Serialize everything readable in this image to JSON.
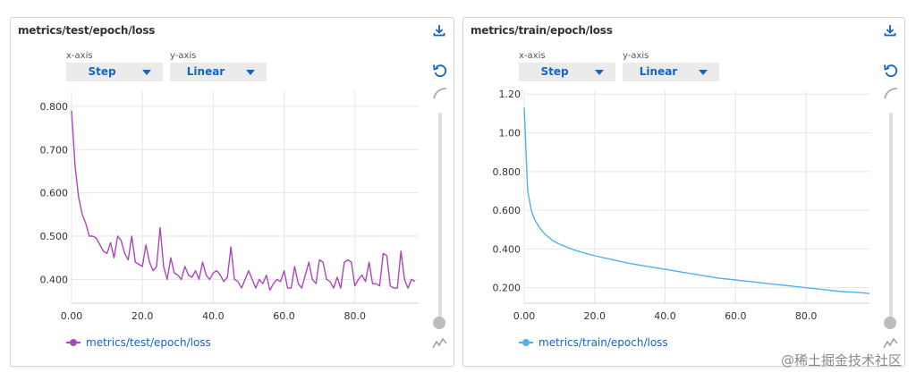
{
  "panels": [
    {
      "title": "metrics/test/epoch/loss",
      "x_axis_label": "x-axis",
      "x_axis_value": "Step",
      "y_axis_label": "y-axis",
      "y_axis_value": "Linear",
      "legend": "metrics/test/epoch/loss",
      "color": "#ab47bc"
    },
    {
      "title": "metrics/train/epoch/loss",
      "x_axis_label": "x-axis",
      "x_axis_value": "Step",
      "y_axis_label": "y-axis",
      "y_axis_value": "Linear",
      "legend": "metrics/train/epoch/loss",
      "color": "#4fb3e8"
    }
  ],
  "icons": {
    "download": "download-icon",
    "reset": "reset-zoom-icon",
    "smooth": "smoothing-icon",
    "sparkline": "sparkline-icon"
  },
  "watermark": "@稀土掘金技术社区",
  "chart_data": [
    {
      "type": "line",
      "title": "metrics/test/epoch/loss",
      "xlabel": "",
      "ylabel": "",
      "xlim": [
        0,
        98
      ],
      "ylim": [
        0.345,
        0.835
      ],
      "x_ticks": [
        0,
        20,
        40,
        60,
        80
      ],
      "x_tick_labels": [
        "0.00",
        "20.0",
        "40.0",
        "60.0",
        "80.0"
      ],
      "y_ticks": [
        0.4,
        0.5,
        0.6,
        0.7,
        0.8
      ],
      "y_tick_labels": [
        "0.400",
        "0.500",
        "0.600",
        "0.700",
        "0.800"
      ],
      "grid": true,
      "series": [
        {
          "name": "metrics/test/epoch/loss",
          "x": [
            0,
            1,
            2,
            3,
            4,
            5,
            6,
            7,
            8,
            9,
            10,
            11,
            12,
            13,
            14,
            15,
            16,
            17,
            18,
            19,
            20,
            21,
            22,
            23,
            24,
            25,
            26,
            27,
            28,
            29,
            30,
            31,
            32,
            33,
            34,
            35,
            36,
            37,
            38,
            39,
            40,
            41,
            42,
            43,
            44,
            45,
            46,
            47,
            48,
            49,
            50,
            51,
            52,
            53,
            54,
            55,
            56,
            57,
            58,
            59,
            60,
            61,
            62,
            63,
            64,
            65,
            66,
            67,
            68,
            69,
            70,
            71,
            72,
            73,
            74,
            75,
            76,
            77,
            78,
            79,
            80,
            81,
            82,
            83,
            84,
            85,
            86,
            87,
            88,
            89,
            90,
            91,
            92,
            93,
            94,
            95,
            96,
            97
          ],
          "values": [
            0.79,
            0.66,
            0.59,
            0.55,
            0.53,
            0.5,
            0.5,
            0.495,
            0.48,
            0.465,
            0.46,
            0.485,
            0.45,
            0.5,
            0.49,
            0.46,
            0.445,
            0.5,
            0.44,
            0.435,
            0.43,
            0.48,
            0.44,
            0.42,
            0.43,
            0.52,
            0.43,
            0.4,
            0.45,
            0.415,
            0.41,
            0.4,
            0.43,
            0.41,
            0.405,
            0.42,
            0.4,
            0.44,
            0.41,
            0.4,
            0.415,
            0.42,
            0.41,
            0.395,
            0.405,
            0.475,
            0.4,
            0.395,
            0.38,
            0.4,
            0.42,
            0.4,
            0.38,
            0.4,
            0.39,
            0.41,
            0.375,
            0.39,
            0.4,
            0.395,
            0.42,
            0.38,
            0.38,
            0.43,
            0.39,
            0.38,
            0.41,
            0.44,
            0.4,
            0.39,
            0.445,
            0.44,
            0.4,
            0.395,
            0.38,
            0.405,
            0.38,
            0.44,
            0.445,
            0.44,
            0.385,
            0.4,
            0.41,
            0.395,
            0.44,
            0.39,
            0.39,
            0.385,
            0.46,
            0.455,
            0.385,
            0.38,
            0.38,
            0.465,
            0.4,
            0.38,
            0.4,
            0.395
          ]
        }
      ]
    },
    {
      "type": "line",
      "title": "metrics/train/epoch/loss",
      "xlabel": "",
      "ylabel": "",
      "xlim": [
        0,
        98
      ],
      "ylim": [
        0.12,
        1.215
      ],
      "x_ticks": [
        0,
        20,
        40,
        60,
        80
      ],
      "x_tick_labels": [
        "0.00",
        "20.0",
        "40.0",
        "60.0",
        "80.0"
      ],
      "y_ticks": [
        0.2,
        0.4,
        0.6,
        0.8,
        1.0,
        1.2
      ],
      "y_tick_labels": [
        "0.200",
        "0.400",
        "0.600",
        "0.800",
        "1.00",
        "1.20"
      ],
      "grid": true,
      "series": [
        {
          "name": "metrics/train/epoch/loss",
          "x": [
            0,
            1,
            2,
            3,
            4,
            5,
            6,
            8,
            10,
            12,
            15,
            18,
            20,
            25,
            30,
            35,
            40,
            45,
            50,
            55,
            60,
            65,
            70,
            75,
            80,
            85,
            90,
            95,
            98
          ],
          "values": [
            1.13,
            0.7,
            0.6,
            0.55,
            0.52,
            0.495,
            0.475,
            0.445,
            0.425,
            0.41,
            0.39,
            0.375,
            0.365,
            0.345,
            0.325,
            0.31,
            0.295,
            0.28,
            0.265,
            0.25,
            0.24,
            0.23,
            0.22,
            0.21,
            0.2,
            0.19,
            0.18,
            0.175,
            0.17
          ]
        }
      ]
    }
  ]
}
